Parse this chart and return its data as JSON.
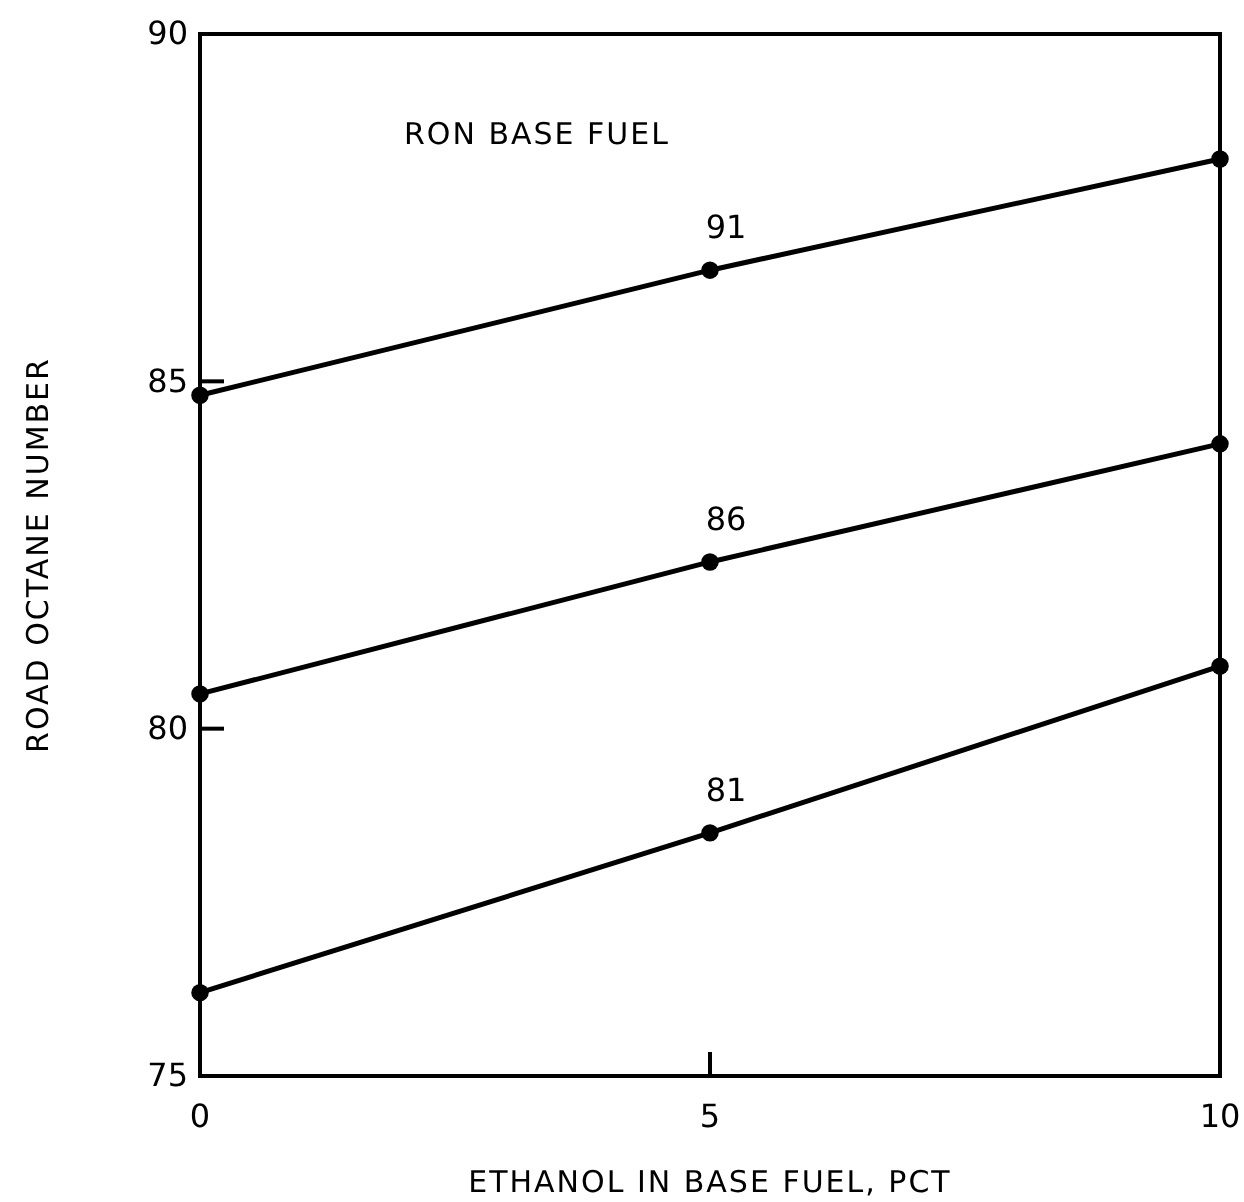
{
  "chart_data": {
    "type": "line",
    "xlabel": "ETHANOL IN BASE FUEL, PCT",
    "ylabel": "ROAD OCTANE NUMBER",
    "annotations": [
      "RON BASE FUEL"
    ],
    "x": [
      0,
      5,
      10
    ],
    "series": [
      {
        "name": "91",
        "color": "#000000",
        "values": [
          84.8,
          86.6,
          88.2
        ]
      },
      {
        "name": "86",
        "color": "#000000",
        "values": [
          80.5,
          82.4,
          84.1
        ]
      },
      {
        "name": "81",
        "color": "#000000",
        "values": [
          76.2,
          78.5,
          80.9
        ]
      }
    ],
    "xlim": [
      0,
      10
    ],
    "xticks": [
      0,
      5,
      10
    ],
    "ylim": [
      75,
      90
    ],
    "yticks": [
      75,
      80,
      85,
      90
    ],
    "grid": false,
    "legend": false,
    "marker": "circle",
    "line_style": "solid"
  }
}
